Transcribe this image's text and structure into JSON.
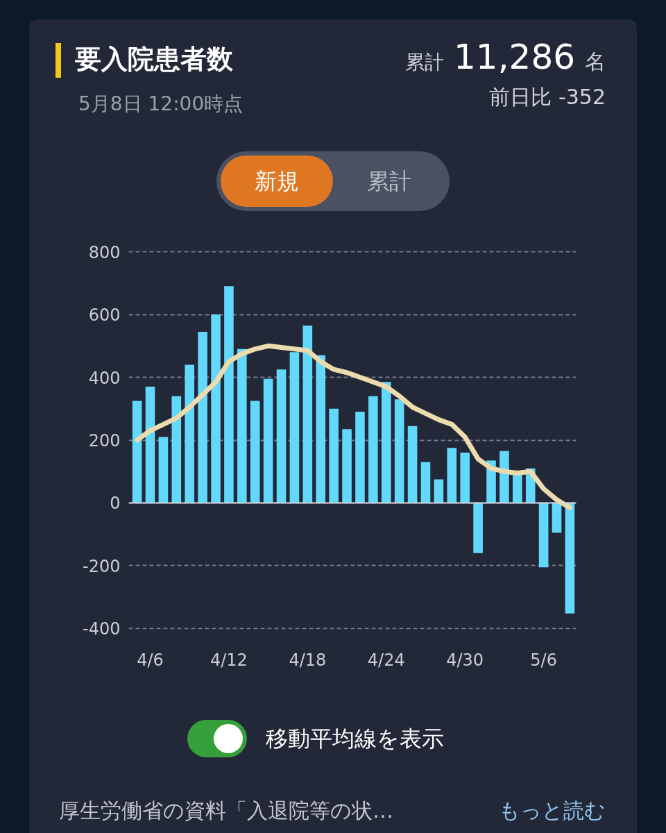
{
  "chart_data": {
    "type": "bar",
    "title": "要入院患者数",
    "subtitle": "5月8日 12:00時点",
    "annotations": [
      "累計",
      "11,286",
      "名",
      "前日比 -352",
      "新規",
      "累計",
      "移動平均線を表示",
      "厚生労働省の資料「入退院等の状…",
      "もっと読む"
    ],
    "categories": [
      null,
      "4/6",
      null,
      null,
      null,
      null,
      null,
      "4/12",
      null,
      null,
      null,
      null,
      null,
      "4/18",
      null,
      null,
      null,
      null,
      null,
      "4/24",
      null,
      null,
      null,
      null,
      null,
      "4/30",
      null,
      null,
      null,
      null,
      null,
      "5/6",
      null,
      null
    ],
    "series": [
      {
        "color": "#62d8fc",
        "values": [
          325,
          370,
          210,
          340,
          440,
          545,
          600,
          690,
          490,
          325,
          395,
          425,
          480,
          565,
          470,
          300,
          235,
          290,
          340,
          385,
          330,
          245,
          130,
          75,
          175,
          160,
          -160,
          135,
          165,
          90,
          110,
          -205,
          -95,
          -352
        ]
      },
      {
        "type": "line",
        "color": "#ecdcad",
        "values": [
          200,
          230,
          250,
          270,
          305,
          345,
          385,
          450,
          475,
          490,
          500,
          495,
          490,
          485,
          450,
          425,
          415,
          400,
          385,
          370,
          340,
          305,
          285,
          265,
          250,
          210,
          140,
          110,
          100,
          95,
          100,
          45,
          10,
          -15
        ]
      }
    ],
    "ylim": [
      -400,
      800
    ],
    "yticks": [
      -400,
      -200,
      0,
      200,
      400,
      600,
      800
    ],
    "grid": "y",
    "ref_lines": [
      {
        "axis": "y",
        "value": 0,
        "color": "#d0d4dc"
      }
    ]
  }
}
